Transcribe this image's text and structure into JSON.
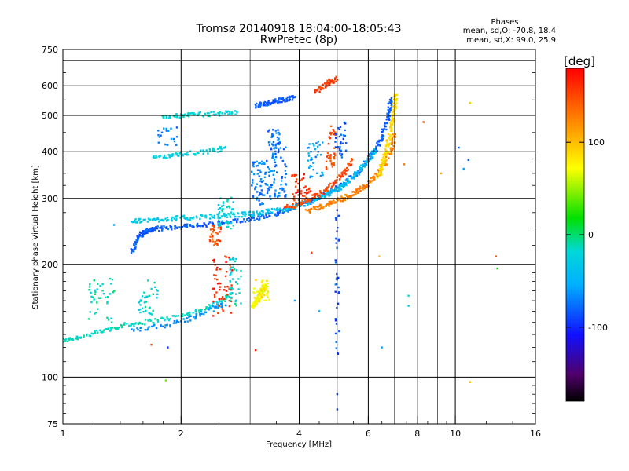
{
  "chart_data": {
    "type": "scatter",
    "title": "Tromsø 20140918 18:04:00-18:05:43",
    "subtitle": "RwPretec (8p)",
    "xlabel": "Frequency [MHz]",
    "ylabel": "Stationary phase Virtual Height [km]",
    "x_scale": "log",
    "y_scale": "log",
    "xlim": [
      1,
      16
    ],
    "ylim": [
      75,
      750
    ],
    "x_ticks": [
      1,
      2,
      4,
      6,
      8,
      10,
      16
    ],
    "x_tick_labels": [
      "1",
      "2",
      "4",
      "6",
      "8",
      "10",
      "16"
    ],
    "x_minor_ticks": [
      3,
      5,
      7,
      9
    ],
    "y_ticks": [
      75,
      100,
      200,
      300,
      400,
      500,
      600,
      750
    ],
    "y_tick_labels": [
      "75",
      "100",
      "200",
      "300",
      "400",
      "500",
      "600",
      "750"
    ],
    "y_minor_ticks": [
      700
    ],
    "grid": true,
    "stats": {
      "heading": "Phases",
      "line_o": "mean, sd,O: -70.8, 18.4",
      "line_x": "mean, sd,X:  99.0, 25.9"
    },
    "colorbar": {
      "unit": "[deg]",
      "range": [
        -180,
        180
      ],
      "ticks": [
        100,
        0,
        -100
      ],
      "tick_labels": [
        "100",
        "0",
        "-100"
      ],
      "colormap": "rainbow"
    },
    "traces": [
      {
        "x": [
          1.0,
          1.1,
          1.25,
          1.4,
          1.6,
          1.9,
          2.2,
          2.5,
          2.7
        ],
        "y": [
          125,
          128,
          132,
          137,
          140,
          144,
          150,
          158,
          168
        ],
        "phase": -15
      },
      {
        "x": [
          1.5,
          1.8,
          2.1,
          2.4,
          2.6
        ],
        "y": [
          133,
          137,
          143,
          152,
          158
        ],
        "phase": -65
      },
      {
        "x": [
          1.5,
          1.55,
          1.6,
          1.65,
          1.7,
          1.8,
          2.0,
          2.2,
          2.5,
          2.8,
          3.1,
          3.4,
          3.7,
          4.0,
          4.4,
          4.8,
          5.2,
          5.6,
          6.0,
          6.3,
          6.5,
          6.7,
          6.8,
          6.85
        ],
        "y": [
          215,
          235,
          243,
          246,
          248,
          250,
          252,
          254,
          257,
          261,
          266,
          272,
          279,
          287,
          298,
          312,
          328,
          350,
          380,
          410,
          440,
          480,
          520,
          560
        ],
        "phase": -82
      },
      {
        "x": [
          1.5,
          1.6,
          1.8,
          2.0,
          2.3,
          2.6,
          2.9,
          3.2
        ],
        "y": [
          260,
          262,
          264,
          266,
          268,
          270,
          272,
          275
        ],
        "phase": -30
      },
      {
        "x": [
          3.0,
          3.3,
          3.6,
          3.9,
          4.2,
          4.5,
          4.8,
          5.1,
          5.4,
          5.7,
          6.0,
          6.3
        ],
        "y": [
          272,
          276,
          280,
          285,
          292,
          300,
          310,
          322,
          336,
          356,
          380,
          410
        ],
        "phase": -40
      },
      {
        "x": [
          4.2,
          4.5,
          4.8,
          5.1,
          5.4,
          5.7,
          6.0,
          6.3,
          6.6,
          6.9,
          7.0
        ],
        "y": [
          278,
          284,
          291,
          298,
          306,
          316,
          328,
          345,
          370,
          410,
          450
        ],
        "phase": 125
      },
      {
        "x": [
          3.7,
          4.0,
          4.3,
          4.6,
          4.9,
          5.2,
          5.5
        ],
        "y": [
          283,
          290,
          300,
          312,
          328,
          352,
          385
        ],
        "phase": 150
      },
      {
        "x": [
          6.4,
          6.5,
          6.6,
          6.7,
          6.8,
          6.9,
          7.0,
          7.05
        ],
        "y": [
          345,
          365,
          385,
          410,
          440,
          480,
          530,
          580
        ],
        "phase": 88
      },
      {
        "x": [
          1.8,
          2.0,
          2.2,
          2.5,
          2.8
        ],
        "y": [
          495,
          500,
          502,
          505,
          510
        ],
        "phase": -20
      },
      {
        "x": [
          3.1,
          3.3,
          3.5,
          3.7,
          3.9
        ],
        "y": [
          530,
          538,
          545,
          552,
          560
        ],
        "phase": -85
      },
      {
        "x": [
          4.4,
          4.6,
          4.8,
          5.0
        ],
        "y": [
          580,
          598,
          615,
          628
        ],
        "phase": 155
      },
      {
        "x": [
          1.7,
          1.9,
          2.1,
          2.4,
          2.6
        ],
        "y": [
          385,
          390,
          395,
          402,
          410
        ],
        "phase": -25
      },
      {
        "x": [
          3.05,
          3.1,
          3.15,
          3.2,
          3.25,
          3.3
        ],
        "y": [
          155,
          158,
          162,
          167,
          172,
          175
        ],
        "phase": 70
      }
    ],
    "blobs": [
      {
        "x": 2.6,
        "y": 275,
        "spread": [
          0.04,
          0.09
        ],
        "n": 45,
        "phase": -22
      },
      {
        "x": 2.55,
        "y": 175,
        "spread": [
          0.05,
          0.16
        ],
        "n": 55,
        "phase": 165
      },
      {
        "x": 2.75,
        "y": 180,
        "spread": [
          0.03,
          0.13
        ],
        "n": 40,
        "phase": -20
      },
      {
        "x": 3.2,
        "y": 170,
        "spread": [
          0.04,
          0.06
        ],
        "n": 40,
        "phase": 80
      },
      {
        "x": 3.2,
        "y": 330,
        "spread": [
          0.05,
          0.12
        ],
        "n": 70,
        "phase": -72
      },
      {
        "x": 3.55,
        "y": 355,
        "spread": [
          0.04,
          0.14
        ],
        "n": 60,
        "phase": -70
      },
      {
        "x": 3.45,
        "y": 420,
        "spread": [
          0.03,
          0.08
        ],
        "n": 40,
        "phase": -75
      },
      {
        "x": 4.05,
        "y": 320,
        "spread": [
          0.05,
          0.08
        ],
        "n": 40,
        "phase": 160
      },
      {
        "x": 1.25,
        "y": 160,
        "spread": [
          0.07,
          0.12
        ],
        "n": 40,
        "phase": -12
      },
      {
        "x": 1.65,
        "y": 165,
        "spread": [
          0.05,
          0.1
        ],
        "n": 35,
        "phase": -18
      },
      {
        "x": 2.45,
        "y": 240,
        "spread": [
          0.03,
          0.06
        ],
        "n": 30,
        "phase": 150
      },
      {
        "x": 4.4,
        "y": 380,
        "spread": [
          0.04,
          0.1
        ],
        "n": 40,
        "phase": -60
      },
      {
        "x": 4.85,
        "y": 410,
        "spread": [
          0.03,
          0.12
        ],
        "n": 40,
        "phase": 150
      },
      {
        "x": 5.1,
        "y": 430,
        "spread": [
          0.03,
          0.1
        ],
        "n": 30,
        "phase": -85
      },
      {
        "x": 1.85,
        "y": 440,
        "spread": [
          0.05,
          0.05
        ],
        "n": 20,
        "phase": -70
      },
      {
        "x": 5.0,
        "y": 180,
        "spread": [
          0.01,
          0.4
        ],
        "n": 40,
        "phase": -85
      }
    ],
    "isolated_points": [
      {
        "x": 10.9,
        "y": 540,
        "phase": 95
      },
      {
        "x": 10.5,
        "y": 360,
        "phase": -60
      },
      {
        "x": 10.8,
        "y": 380,
        "phase": -85
      },
      {
        "x": 10.2,
        "y": 410,
        "phase": -85
      },
      {
        "x": 12.7,
        "y": 210,
        "phase": 150
      },
      {
        "x": 12.8,
        "y": 195,
        "phase": 20
      },
      {
        "x": 9.2,
        "y": 350,
        "phase": 110
      },
      {
        "x": 8.3,
        "y": 480,
        "phase": 150
      },
      {
        "x": 7.4,
        "y": 370,
        "phase": 130
      },
      {
        "x": 7.6,
        "y": 165,
        "phase": -20
      },
      {
        "x": 7.6,
        "y": 155,
        "phase": -30
      },
      {
        "x": 6.4,
        "y": 210,
        "phase": 100
      },
      {
        "x": 6.5,
        "y": 120,
        "phase": -60
      },
      {
        "x": 10.9,
        "y": 97,
        "phase": 100
      },
      {
        "x": 1.83,
        "y": 98,
        "phase": 40
      },
      {
        "x": 3.1,
        "y": 118,
        "phase": 170
      },
      {
        "x": 5.0,
        "y": 90,
        "phase": -90
      },
      {
        "x": 5.0,
        "y": 82,
        "phase": -90
      },
      {
        "x": 1.85,
        "y": 120,
        "phase": -100
      },
      {
        "x": 1.68,
        "y": 122,
        "phase": 150
      },
      {
        "x": 3.9,
        "y": 160,
        "phase": -60
      },
      {
        "x": 4.5,
        "y": 150,
        "phase": -55
      },
      {
        "x": 4.3,
        "y": 215,
        "phase": 160
      },
      {
        "x": 1.35,
        "y": 255,
        "phase": -60
      }
    ]
  }
}
